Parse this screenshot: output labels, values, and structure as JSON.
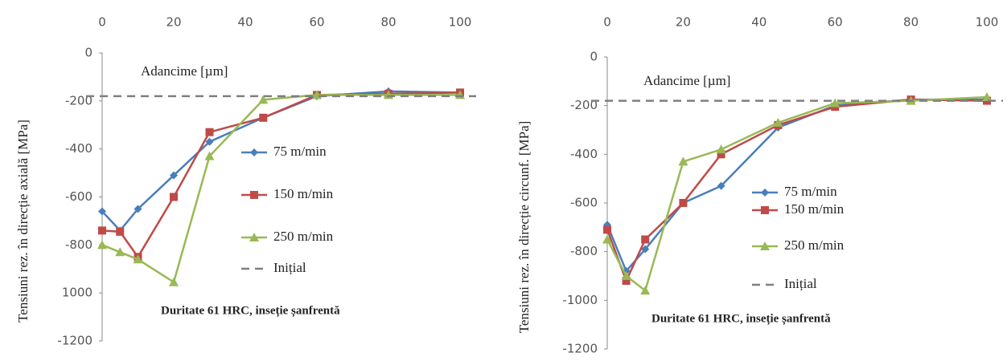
{
  "chart_data": [
    {
      "type": "line",
      "title": "Duritate 61 HRC, inseție șanfrentă",
      "annotation": "Adancime [µm]",
      "ylabel": "Tensiuni rez. în direcție axială [MPa]",
      "x": [
        0,
        5,
        10,
        20,
        30,
        45,
        60,
        80,
        100
      ],
      "xlim": [
        0,
        100
      ],
      "xticks": [
        0,
        20,
        40,
        60,
        80,
        100
      ],
      "ylim": [
        -1200,
        0
      ],
      "yticks": [
        0,
        -200,
        -400,
        -600,
        -800,
        {
          "value": -1000,
          "label": "1000"
        },
        -1200
      ],
      "series": [
        {
          "name": "75 m/min",
          "color": "#4a7ebb",
          "marker": "diamond",
          "values": [
            -660,
            -740,
            -650,
            -510,
            -370,
            -270,
            -180,
            -160,
            -165
          ]
        },
        {
          "name": "150 m/min",
          "color": "#be4b48",
          "marker": "square",
          "values": [
            -740,
            -745,
            -850,
            -600,
            -330,
            -270,
            -175,
            -170,
            -165
          ]
        },
        {
          "name": "250 m/min",
          "color": "#98b954",
          "marker": "triangle",
          "values": [
            -800,
            -830,
            -860,
            -955,
            -430,
            -195,
            -175,
            -175,
            -175
          ]
        }
      ],
      "reference_line": {
        "name": "Inițial",
        "value": -180,
        "color": "#7f7f7f",
        "style": "dashed"
      }
    },
    {
      "type": "line",
      "title": "Duritate 61 HRC, inseție șanfrentă",
      "annotation": "Adancime [µm]",
      "ylabel": "Tensiuni rez. în direcție circunf. [MPa]",
      "x": [
        0,
        5,
        10,
        20,
        30,
        45,
        60,
        80,
        100
      ],
      "xlim": [
        0,
        100
      ],
      "xticks": [
        0,
        20,
        40,
        60,
        80,
        100
      ],
      "ylim": [
        -1200,
        0
      ],
      "yticks": [
        0,
        -200,
        -400,
        -600,
        -800,
        -1000,
        -1200
      ],
      "series": [
        {
          "name": "75 m/min",
          "color": "#4a7ebb",
          "marker": "diamond",
          "values": [
            -690,
            -880,
            -790,
            -600,
            -530,
            -290,
            -200,
            -175,
            -175
          ]
        },
        {
          "name": "150 m/min",
          "color": "#be4b48",
          "marker": "square",
          "values": [
            -710,
            -920,
            -750,
            -600,
            -400,
            -280,
            -205,
            -175,
            -180
          ]
        },
        {
          "name": "250 m/min",
          "color": "#98b954",
          "marker": "triangle",
          "values": [
            -750,
            -900,
            -960,
            -430,
            -380,
            -270,
            -190,
            -180,
            -165
          ]
        }
      ],
      "reference_line": {
        "name": "Inițial",
        "value": -180,
        "color": "#7f7f7f",
        "style": "dashed"
      }
    }
  ]
}
